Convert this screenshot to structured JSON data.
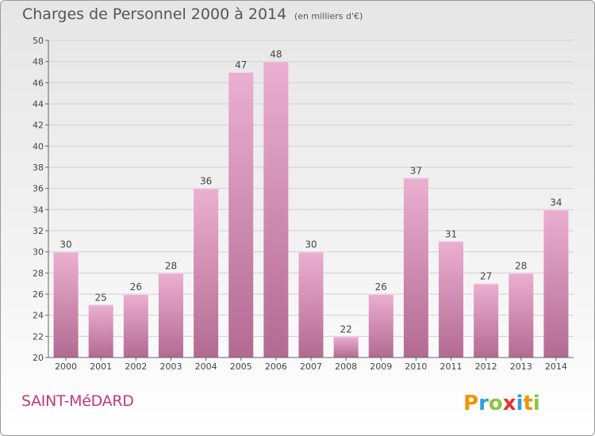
{
  "header": {
    "title": "Charges de Personnel 2000 à 2014",
    "subtitle": "(en milliers d'€)"
  },
  "footer": {
    "commune": "SAINT-MéDARD",
    "logo_text": "Proxiti"
  },
  "colors": {
    "bar_light": "#ebafd1",
    "bar_dark": "#b36a92",
    "commune_text": "#c33a78",
    "grid": "#d0d0d0"
  },
  "chart_data": {
    "type": "bar",
    "categories": [
      "2000",
      "2001",
      "2002",
      "2003",
      "2004",
      "2005",
      "2006",
      "2007",
      "2008",
      "2009",
      "2010",
      "2011",
      "2012",
      "2013",
      "2014"
    ],
    "values": [
      30,
      25,
      26,
      28,
      36,
      47,
      48,
      30,
      22,
      26,
      37,
      31,
      27,
      28,
      34
    ],
    "ylim": [
      20,
      50
    ],
    "yticks": [
      20,
      22,
      24,
      26,
      28,
      30,
      32,
      34,
      36,
      38,
      40,
      42,
      44,
      46,
      48,
      50
    ],
    "grid": true,
    "xlabel": "",
    "ylabel": ""
  }
}
